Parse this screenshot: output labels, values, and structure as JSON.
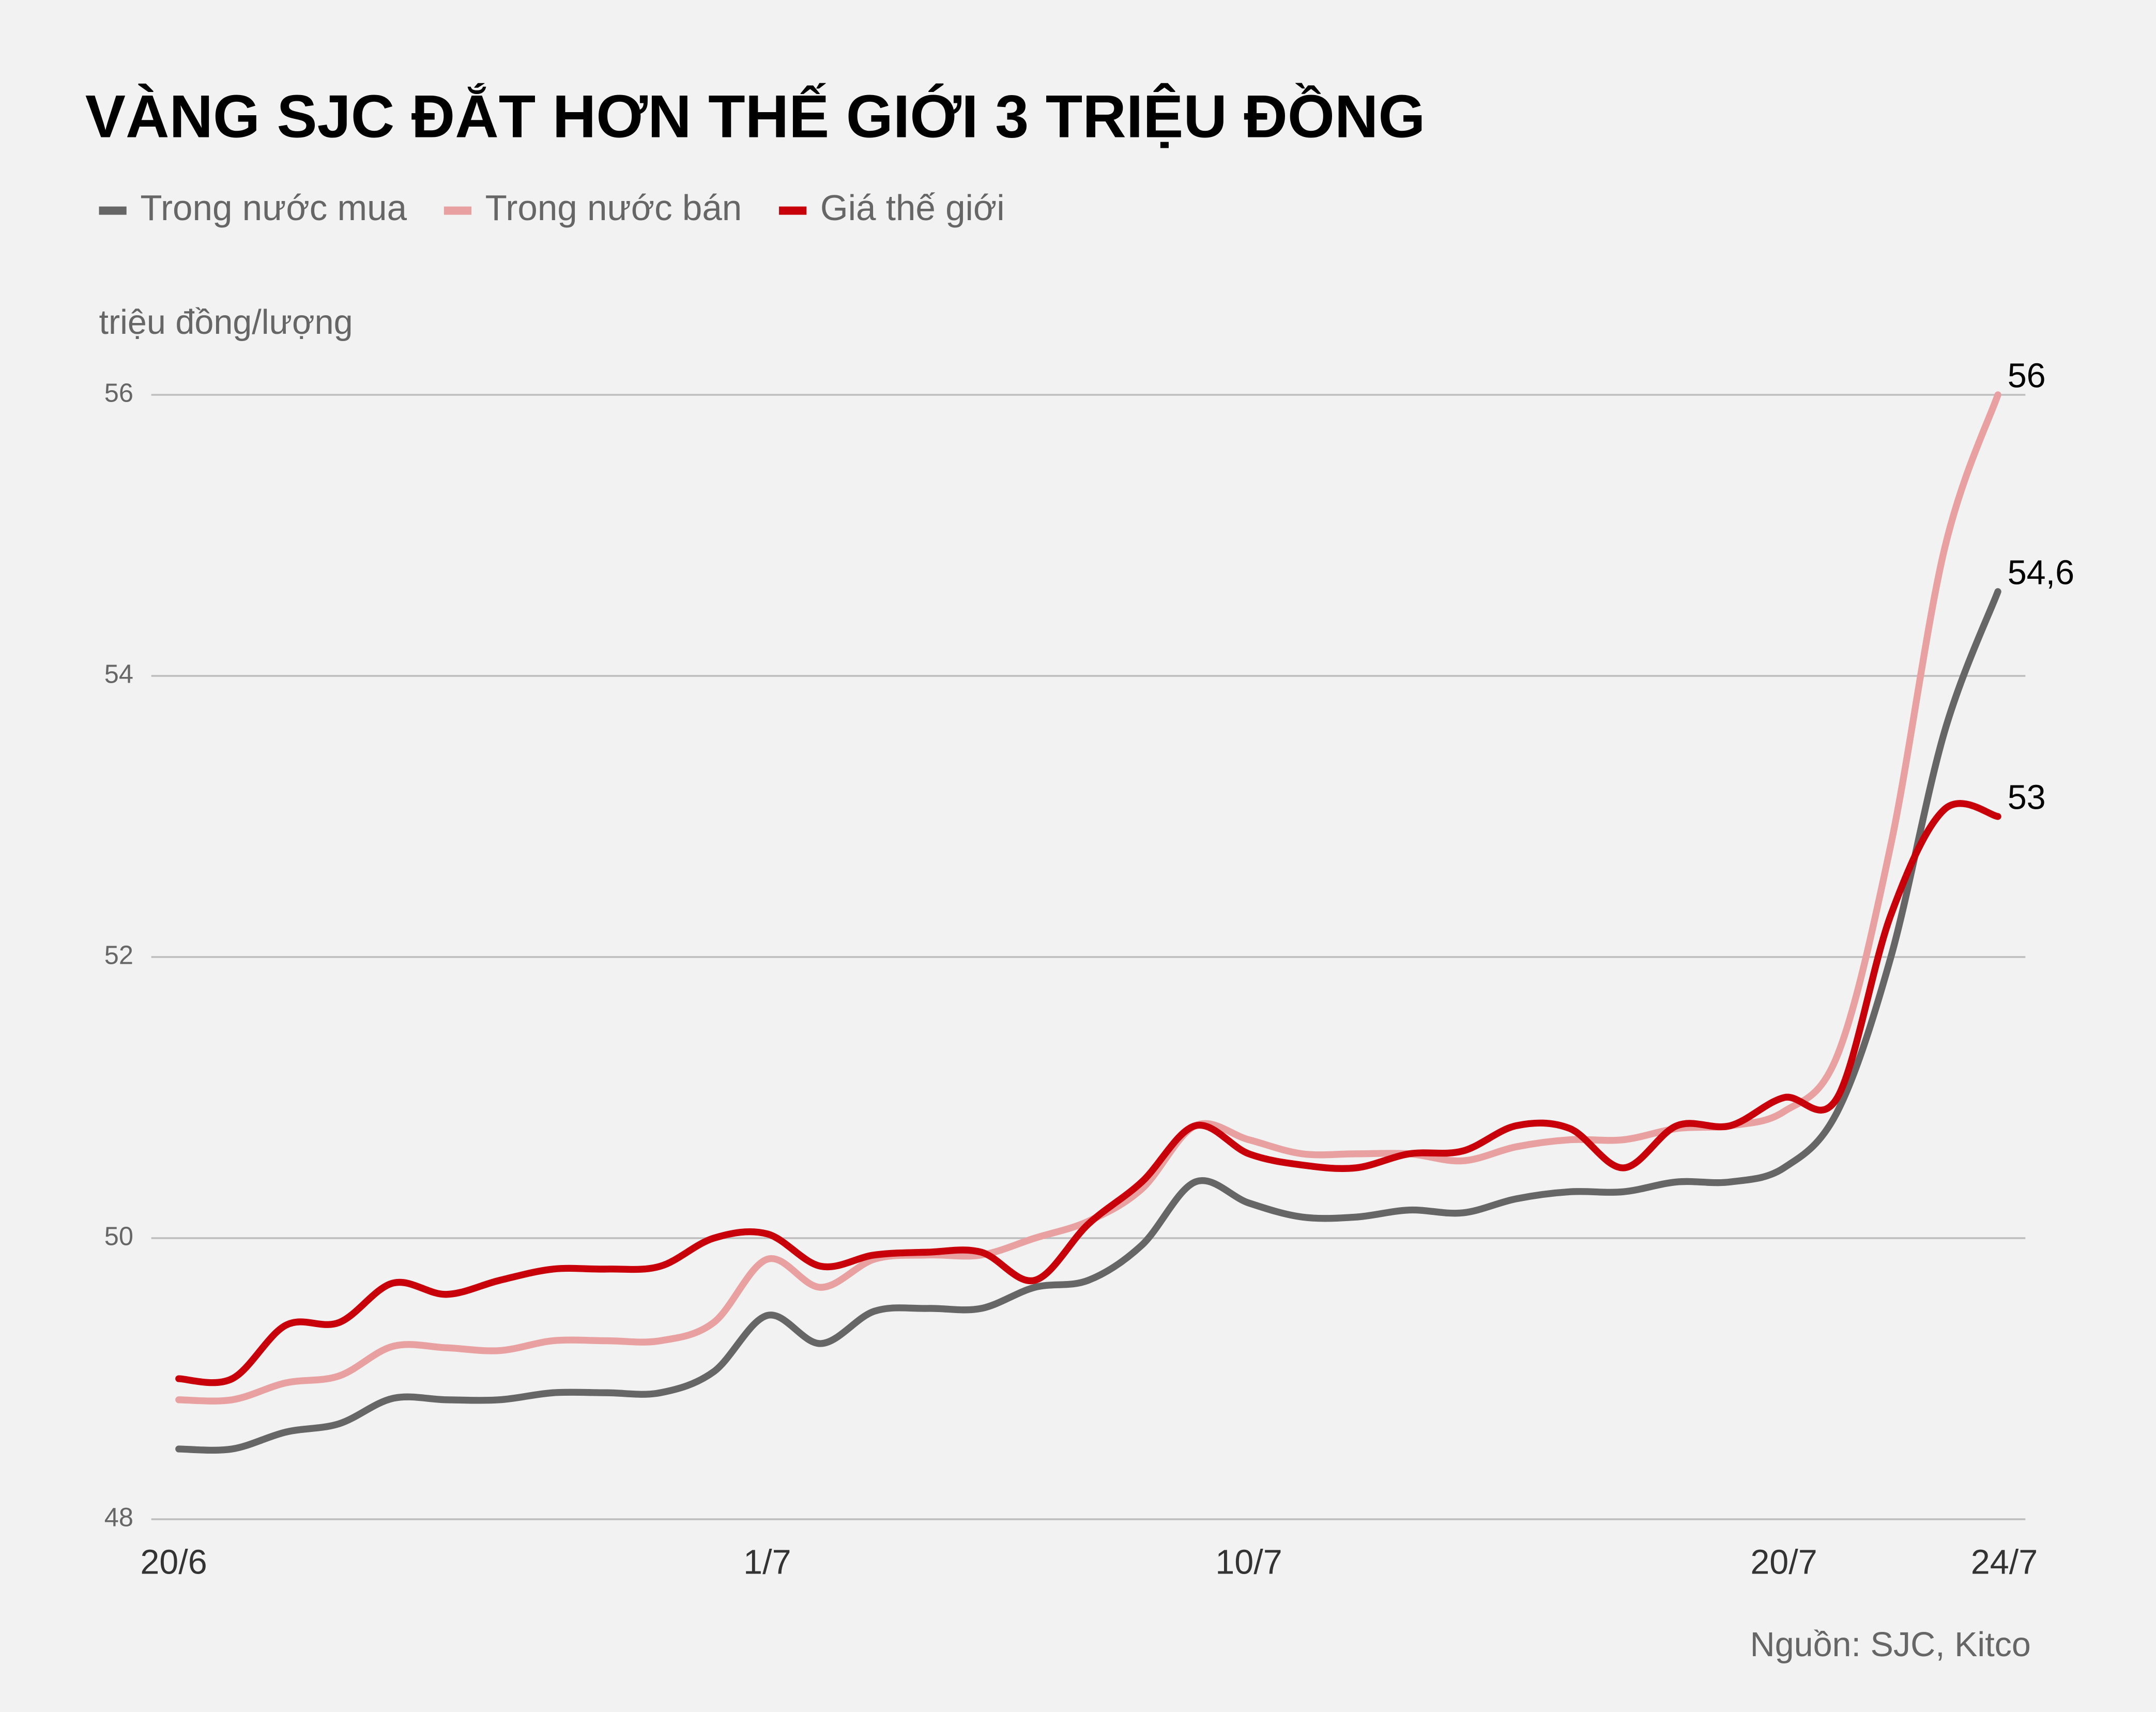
{
  "chart_data": {
    "type": "line",
    "title": "VÀNG SJC ĐẮT HƠN THẾ GIỚI 3 TRIỆU ĐỒNG",
    "y_label": "triệu đồng/lượng",
    "source": "Nguồn: SJC, Kitco",
    "categories": [
      "20/6",
      null,
      null,
      null,
      null,
      null,
      null,
      null,
      null,
      null,
      null,
      "1/7",
      null,
      null,
      null,
      null,
      null,
      null,
      null,
      null,
      "10/7",
      null,
      null,
      null,
      null,
      null,
      null,
      null,
      null,
      null,
      "20/7",
      null,
      null,
      null,
      "24/7"
    ],
    "series": [
      {
        "name": "Trong nước mua",
        "color": "#666666",
        "values": [
          48.5,
          48.5,
          48.62,
          48.68,
          48.86,
          48.85,
          48.85,
          48.9,
          48.9,
          48.9,
          49.05,
          49.45,
          49.25,
          49.48,
          49.5,
          49.5,
          49.65,
          49.7,
          49.95,
          50.4,
          50.25,
          50.15,
          50.15,
          50.2,
          50.18,
          50.28,
          50.33,
          50.33,
          50.4,
          50.4,
          50.5,
          50.9,
          52.0,
          53.6,
          54.6
        ],
        "value_labels": [
          null,
          null,
          null,
          null,
          null,
          null,
          null,
          null,
          null,
          null,
          null,
          null,
          null,
          null,
          null,
          null,
          null,
          null,
          null,
          null,
          null,
          null,
          null,
          null,
          null,
          null,
          null,
          null,
          null,
          null,
          null,
          null,
          null,
          null,
          "54,6"
        ]
      },
      {
        "name": "Trong nước bán",
        "color": "#e8a0a0",
        "values": [
          48.85,
          48.85,
          48.97,
          49.02,
          49.23,
          49.22,
          49.2,
          49.27,
          49.27,
          49.27,
          49.4,
          49.85,
          49.65,
          49.85,
          49.88,
          49.88,
          50.0,
          50.12,
          50.35,
          50.8,
          50.7,
          50.6,
          50.6,
          50.6,
          50.55,
          50.65,
          50.7,
          50.7,
          50.78,
          50.8,
          50.9,
          51.3,
          52.8,
          54.9,
          56
        ],
        "value_labels": [
          null,
          null,
          null,
          null,
          null,
          null,
          null,
          null,
          null,
          null,
          null,
          null,
          null,
          null,
          null,
          null,
          null,
          null,
          null,
          null,
          null,
          null,
          null,
          null,
          null,
          null,
          null,
          null,
          null,
          null,
          null,
          null,
          null,
          null,
          "56"
        ]
      },
      {
        "name": "Giá thế giới",
        "color": "#c8000a",
        "values": [
          49.0,
          49.0,
          49.38,
          49.4,
          49.68,
          49.6,
          49.7,
          49.78,
          49.78,
          49.8,
          50.0,
          50.03,
          49.8,
          49.88,
          49.9,
          49.9,
          49.7,
          50.1,
          50.4,
          50.8,
          50.6,
          50.52,
          50.5,
          50.6,
          50.62,
          50.8,
          50.78,
          50.5,
          50.8,
          50.8,
          51.0,
          51.0,
          52.3,
          53.05,
          53
        ],
        "value_labels": [
          null,
          null,
          null,
          null,
          null,
          null,
          null,
          null,
          null,
          null,
          null,
          null,
          null,
          null,
          null,
          null,
          null,
          null,
          null,
          null,
          null,
          null,
          null,
          null,
          null,
          null,
          null,
          null,
          null,
          null,
          null,
          null,
          null,
          null,
          "53"
        ]
      }
    ],
    "ylim": [
      48,
      56
    ],
    "yticks": [
      48,
      50,
      52,
      54,
      56
    ],
    "grid": true,
    "legend": "top"
  }
}
